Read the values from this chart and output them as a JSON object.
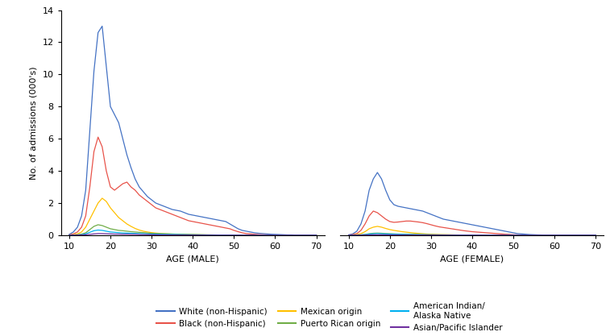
{
  "ylabel": "No. of admissions (000's)",
  "xlabel_male": "AGE (MALE)",
  "xlabel_female": "AGE (FEMALE)",
  "ylim": [
    0,
    14
  ],
  "xlim": [
    8,
    72
  ],
  "yticks": [
    0,
    2,
    4,
    6,
    8,
    10,
    12,
    14
  ],
  "xticks": [
    10,
    20,
    30,
    40,
    50,
    60,
    70
  ],
  "colors": {
    "white": "#4472C4",
    "black": "#E8534A",
    "mexican": "#FFC000",
    "puerto_rican": "#70AD47",
    "american_indian": "#00B0F0",
    "asian": "#7030A0"
  },
  "legend": [
    {
      "label": "White (non-Hispanic)",
      "color": "#4472C4"
    },
    {
      "label": "Black (non-Hispanic)",
      "color": "#E8534A"
    },
    {
      "label": "Mexican origin",
      "color": "#FFC000"
    },
    {
      "label": "Puerto Rican origin",
      "color": "#70AD47"
    },
    {
      "label": "American Indian/\nAlaska Native",
      "color": "#00B0F0"
    },
    {
      "label": "Asian/Pacific Islander",
      "color": "#7030A0"
    }
  ],
  "male": {
    "ages": [
      10,
      11,
      12,
      13,
      14,
      15,
      16,
      17,
      18,
      19,
      20,
      21,
      22,
      23,
      24,
      25,
      26,
      27,
      28,
      29,
      30,
      31,
      32,
      33,
      34,
      35,
      36,
      37,
      38,
      39,
      40,
      41,
      42,
      43,
      44,
      45,
      46,
      47,
      48,
      49,
      50,
      51,
      52,
      53,
      54,
      55,
      56,
      57,
      58,
      59,
      60,
      61,
      62,
      63,
      64,
      65,
      70
    ],
    "white": [
      0.05,
      0.2,
      0.5,
      1.2,
      2.8,
      6.5,
      10.2,
      12.6,
      13.0,
      10.5,
      8.0,
      7.5,
      7.0,
      6.0,
      5.0,
      4.2,
      3.5,
      3.0,
      2.7,
      2.4,
      2.2,
      2.0,
      1.9,
      1.8,
      1.7,
      1.6,
      1.55,
      1.5,
      1.4,
      1.3,
      1.25,
      1.2,
      1.15,
      1.1,
      1.05,
      1.0,
      0.95,
      0.9,
      0.85,
      0.7,
      0.55,
      0.4,
      0.3,
      0.25,
      0.2,
      0.15,
      0.12,
      0.1,
      0.08,
      0.06,
      0.05,
      0.04,
      0.03,
      0.02,
      0.02,
      0.01,
      0.0
    ],
    "black": [
      0.02,
      0.08,
      0.2,
      0.5,
      1.2,
      3.0,
      5.2,
      6.1,
      5.5,
      4.0,
      3.0,
      2.8,
      3.0,
      3.2,
      3.3,
      3.0,
      2.8,
      2.5,
      2.3,
      2.1,
      1.9,
      1.7,
      1.6,
      1.5,
      1.4,
      1.3,
      1.2,
      1.1,
      1.0,
      0.9,
      0.85,
      0.8,
      0.75,
      0.7,
      0.65,
      0.6,
      0.55,
      0.5,
      0.45,
      0.4,
      0.3,
      0.22,
      0.15,
      0.1,
      0.08,
      0.06,
      0.04,
      0.03,
      0.02,
      0.015,
      0.01,
      0.008,
      0.005,
      0.003,
      0.002,
      0.001,
      0.0
    ],
    "mexican": [
      0.01,
      0.03,
      0.08,
      0.2,
      0.5,
      1.0,
      1.5,
      2.0,
      2.3,
      2.1,
      1.7,
      1.4,
      1.1,
      0.9,
      0.7,
      0.55,
      0.42,
      0.32,
      0.25,
      0.2,
      0.16,
      0.13,
      0.11,
      0.09,
      0.08,
      0.07,
      0.06,
      0.05,
      0.04,
      0.035,
      0.03,
      0.025,
      0.02,
      0.015,
      0.012,
      0.01,
      0.008,
      0.006,
      0.005,
      0.004,
      0.003,
      0.002,
      0.002,
      0.001,
      0.001,
      0.001,
      0.0,
      0.0,
      0.0,
      0.0,
      0.0,
      0.0,
      0.0,
      0.0,
      0.0,
      0.0,
      0.0
    ],
    "puerto_rican": [
      0.005,
      0.01,
      0.03,
      0.07,
      0.15,
      0.35,
      0.55,
      0.65,
      0.6,
      0.5,
      0.4,
      0.35,
      0.3,
      0.28,
      0.25,
      0.22,
      0.2,
      0.18,
      0.16,
      0.14,
      0.12,
      0.11,
      0.1,
      0.09,
      0.08,
      0.07,
      0.065,
      0.06,
      0.055,
      0.05,
      0.045,
      0.04,
      0.035,
      0.03,
      0.025,
      0.02,
      0.015,
      0.012,
      0.01,
      0.008,
      0.005,
      0.003,
      0.002,
      0.001,
      0.001,
      0.0,
      0.0,
      0.0,
      0.0,
      0.0,
      0.0,
      0.0,
      0.0,
      0.0,
      0.0,
      0.0,
      0.0
    ],
    "american_indian": [
      0.003,
      0.007,
      0.015,
      0.035,
      0.08,
      0.18,
      0.28,
      0.32,
      0.3,
      0.25,
      0.2,
      0.18,
      0.16,
      0.14,
      0.13,
      0.12,
      0.11,
      0.1,
      0.09,
      0.08,
      0.07,
      0.065,
      0.06,
      0.055,
      0.05,
      0.045,
      0.04,
      0.035,
      0.03,
      0.025,
      0.02,
      0.018,
      0.016,
      0.014,
      0.012,
      0.01,
      0.008,
      0.006,
      0.005,
      0.004,
      0.003,
      0.002,
      0.001,
      0.001,
      0.0,
      0.0,
      0.0,
      0.0,
      0.0,
      0.0,
      0.0,
      0.0,
      0.0,
      0.0,
      0.0,
      0.0,
      0.0
    ],
    "asian": [
      0.001,
      0.003,
      0.006,
      0.012,
      0.025,
      0.05,
      0.08,
      0.1,
      0.1,
      0.09,
      0.08,
      0.07,
      0.07,
      0.06,
      0.06,
      0.05,
      0.05,
      0.04,
      0.04,
      0.035,
      0.03,
      0.025,
      0.02,
      0.018,
      0.015,
      0.012,
      0.01,
      0.009,
      0.008,
      0.007,
      0.006,
      0.005,
      0.004,
      0.003,
      0.003,
      0.002,
      0.002,
      0.001,
      0.001,
      0.001,
      0.0,
      0.0,
      0.0,
      0.0,
      0.0,
      0.0,
      0.0,
      0.0,
      0.0,
      0.0,
      0.0,
      0.0,
      0.0,
      0.0,
      0.0,
      0.0,
      0.0
    ]
  },
  "female": {
    "ages": [
      10,
      11,
      12,
      13,
      14,
      15,
      16,
      17,
      18,
      19,
      20,
      21,
      22,
      23,
      24,
      25,
      26,
      27,
      28,
      29,
      30,
      31,
      32,
      33,
      34,
      35,
      36,
      37,
      38,
      39,
      40,
      41,
      42,
      43,
      44,
      45,
      46,
      47,
      48,
      49,
      50,
      51,
      52,
      53,
      54,
      55,
      56,
      57,
      58,
      59,
      60,
      61,
      62,
      63,
      64,
      65,
      70
    ],
    "white": [
      0.02,
      0.08,
      0.25,
      0.7,
      1.5,
      2.8,
      3.5,
      3.9,
      3.5,
      2.8,
      2.2,
      1.9,
      1.8,
      1.75,
      1.7,
      1.65,
      1.6,
      1.55,
      1.5,
      1.4,
      1.3,
      1.2,
      1.1,
      1.0,
      0.95,
      0.9,
      0.85,
      0.8,
      0.75,
      0.7,
      0.65,
      0.6,
      0.55,
      0.5,
      0.45,
      0.4,
      0.35,
      0.3,
      0.25,
      0.2,
      0.15,
      0.1,
      0.08,
      0.06,
      0.04,
      0.03,
      0.02,
      0.015,
      0.01,
      0.008,
      0.005,
      0.003,
      0.002,
      0.001,
      0.001,
      0.0,
      0.0
    ],
    "black": [
      0.01,
      0.04,
      0.1,
      0.3,
      0.7,
      1.2,
      1.5,
      1.4,
      1.2,
      1.0,
      0.85,
      0.8,
      0.82,
      0.85,
      0.88,
      0.88,
      0.85,
      0.82,
      0.78,
      0.72,
      0.65,
      0.58,
      0.52,
      0.48,
      0.44,
      0.4,
      0.36,
      0.32,
      0.28,
      0.25,
      0.22,
      0.2,
      0.18,
      0.16,
      0.14,
      0.12,
      0.1,
      0.08,
      0.06,
      0.05,
      0.03,
      0.02,
      0.015,
      0.01,
      0.008,
      0.005,
      0.003,
      0.002,
      0.001,
      0.001,
      0.0,
      0.0,
      0.0,
      0.0,
      0.0,
      0.0,
      0.0
    ],
    "mexican": [
      0.005,
      0.015,
      0.04,
      0.1,
      0.22,
      0.4,
      0.5,
      0.55,
      0.5,
      0.42,
      0.35,
      0.3,
      0.26,
      0.22,
      0.19,
      0.16,
      0.13,
      0.11,
      0.09,
      0.07,
      0.06,
      0.05,
      0.04,
      0.035,
      0.03,
      0.025,
      0.02,
      0.015,
      0.012,
      0.01,
      0.008,
      0.006,
      0.005,
      0.004,
      0.003,
      0.002,
      0.001,
      0.001,
      0.0,
      0.0,
      0.0,
      0.0,
      0.0,
      0.0,
      0.0,
      0.0,
      0.0,
      0.0,
      0.0,
      0.0,
      0.0,
      0.0,
      0.0,
      0.0,
      0.0,
      0.0,
      0.0
    ],
    "puerto_rican": [
      0.002,
      0.005,
      0.01,
      0.025,
      0.05,
      0.09,
      0.12,
      0.13,
      0.12,
      0.1,
      0.09,
      0.08,
      0.07,
      0.065,
      0.06,
      0.055,
      0.05,
      0.045,
      0.04,
      0.035,
      0.03,
      0.025,
      0.022,
      0.02,
      0.018,
      0.015,
      0.012,
      0.01,
      0.008,
      0.007,
      0.006,
      0.005,
      0.004,
      0.003,
      0.002,
      0.002,
      0.001,
      0.001,
      0.0,
      0.0,
      0.0,
      0.0,
      0.0,
      0.0,
      0.0,
      0.0,
      0.0,
      0.0,
      0.0,
      0.0,
      0.0,
      0.0,
      0.0,
      0.0,
      0.0,
      0.0,
      0.0
    ],
    "american_indian": [
      0.001,
      0.003,
      0.008,
      0.018,
      0.04,
      0.07,
      0.09,
      0.1,
      0.09,
      0.08,
      0.07,
      0.065,
      0.06,
      0.055,
      0.05,
      0.045,
      0.04,
      0.035,
      0.03,
      0.025,
      0.022,
      0.02,
      0.018,
      0.015,
      0.013,
      0.011,
      0.009,
      0.007,
      0.006,
      0.005,
      0.004,
      0.003,
      0.002,
      0.002,
      0.001,
      0.001,
      0.0,
      0.0,
      0.0,
      0.0,
      0.0,
      0.0,
      0.0,
      0.0,
      0.0,
      0.0,
      0.0,
      0.0,
      0.0,
      0.0,
      0.0,
      0.0,
      0.0,
      0.0,
      0.0,
      0.0,
      0.0
    ],
    "asian": [
      0.0,
      0.001,
      0.002,
      0.005,
      0.01,
      0.02,
      0.025,
      0.028,
      0.025,
      0.022,
      0.02,
      0.018,
      0.016,
      0.014,
      0.012,
      0.01,
      0.009,
      0.008,
      0.007,
      0.006,
      0.005,
      0.004,
      0.003,
      0.003,
      0.002,
      0.002,
      0.001,
      0.001,
      0.001,
      0.0,
      0.0,
      0.0,
      0.0,
      0.0,
      0.0,
      0.0,
      0.0,
      0.0,
      0.0,
      0.0,
      0.0,
      0.0,
      0.0,
      0.0,
      0.0,
      0.0,
      0.0,
      0.0,
      0.0,
      0.0,
      0.0,
      0.0,
      0.0,
      0.0,
      0.0,
      0.0,
      0.0
    ]
  }
}
